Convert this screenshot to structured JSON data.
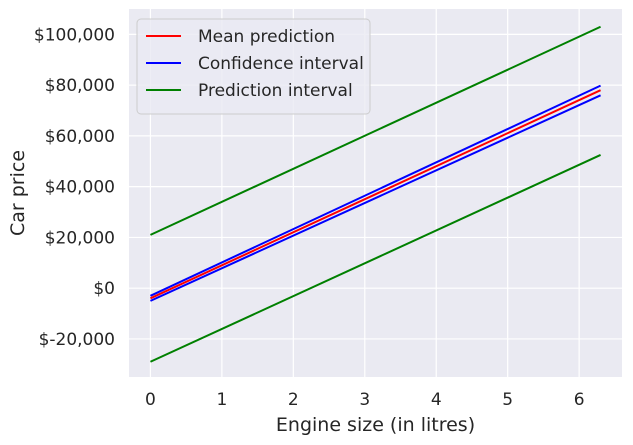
{
  "chart_data": {
    "type": "line",
    "xlabel": "Engine size (in litres)",
    "ylabel": "Car price",
    "xlim": [
      -0.3,
      6.6
    ],
    "ylim": [
      -35000,
      110000
    ],
    "xticks": [
      0,
      1,
      2,
      3,
      4,
      5,
      6
    ],
    "xtick_labels": [
      "0",
      "1",
      "2",
      "3",
      "4",
      "5",
      "6"
    ],
    "yticks": [
      -20000,
      0,
      20000,
      40000,
      60000,
      80000,
      100000
    ],
    "ytick_labels": [
      "$-20,000",
      "$0",
      "$20,000",
      "$40,000",
      "$60,000",
      "$80,000",
      "$100,000"
    ],
    "grid": true,
    "legend_position": "top-left",
    "background_color": "#eaeaf2",
    "series": [
      {
        "name": "Mean prediction",
        "color": "#ff0000",
        "x": [
          0,
          6.3
        ],
        "y": [
          -4000,
          78000
        ],
        "legend": true
      },
      {
        "name": "Confidence interval",
        "color": "#0000ff",
        "x": [
          0,
          6.3
        ],
        "y": [
          -3000,
          79800
        ],
        "legend": true
      },
      {
        "name": "Confidence interval",
        "color": "#0000ff",
        "x": [
          0,
          6.3
        ],
        "y": [
          -5000,
          76000
        ],
        "legend": false
      },
      {
        "name": "Prediction interval",
        "color": "#008000",
        "x": [
          0,
          6.3
        ],
        "y": [
          21000,
          103000
        ],
        "legend": true
      },
      {
        "name": "Prediction interval",
        "color": "#008000",
        "x": [
          0,
          6.3
        ],
        "y": [
          -29000,
          52500
        ],
        "legend": false
      }
    ]
  }
}
